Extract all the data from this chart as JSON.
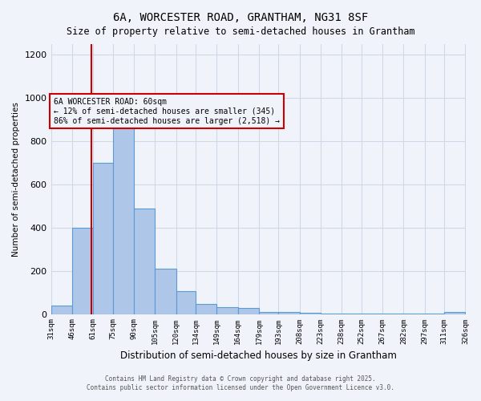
{
  "title1": "6A, WORCESTER ROAD, GRANTHAM, NG31 8SF",
  "title2": "Size of property relative to semi-detached houses in Grantham",
  "xlabel": "Distribution of semi-detached houses by size in Grantham",
  "ylabel": "Number of semi-detached properties",
  "footer1": "Contains HM Land Registry data © Crown copyright and database right 2025.",
  "footer2": "Contains public sector information licensed under the Open Government Licence v3.0.",
  "annotation_line1": "6A WORCESTER ROAD: 60sqm",
  "annotation_line2": "← 12% of semi-detached houses are smaller (345)",
  "annotation_line3": "86% of semi-detached houses are larger (2,518) →",
  "property_size": 60,
  "bar_color": "#aec6e8",
  "bar_edge_color": "#5b9bd5",
  "redline_color": "#cc0000",
  "annotation_box_color": "#cc0000",
  "grid_color": "#d0d8e8",
  "background_color": "#f0f4fa",
  "ylim": [
    0,
    1250
  ],
  "bins": [
    31,
    46,
    61,
    75,
    90,
    105,
    120,
    134,
    149,
    164,
    179,
    193,
    208,
    223,
    238,
    252,
    267,
    282,
    297,
    311,
    326
  ],
  "bin_labels": [
    "31sqm",
    "46sqm",
    "61sqm",
    "75sqm",
    "90sqm",
    "105sqm",
    "120sqm",
    "134sqm",
    "149sqm",
    "164sqm",
    "179sqm",
    "193sqm",
    "208sqm",
    "223sqm",
    "238sqm",
    "252sqm",
    "267sqm",
    "282sqm",
    "297sqm",
    "311sqm",
    "326sqm"
  ],
  "counts": [
    40,
    400,
    700,
    875,
    490,
    210,
    105,
    45,
    30,
    28,
    10,
    8,
    5,
    3,
    2,
    2,
    1,
    1,
    1,
    8
  ]
}
